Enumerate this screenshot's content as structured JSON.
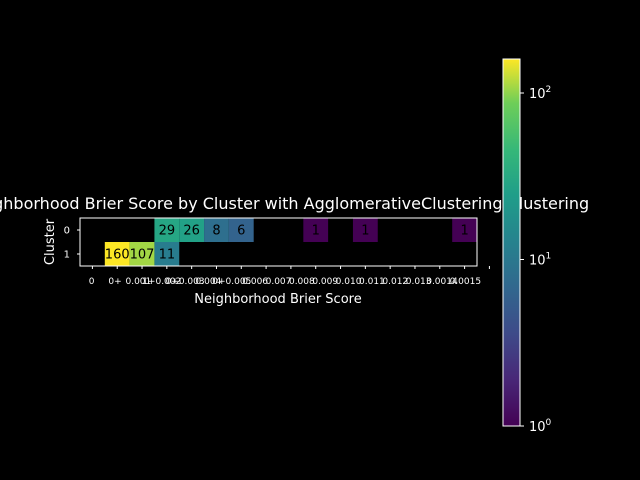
{
  "chart_data": {
    "type": "heatmap",
    "title": "Neighborhood Brier Score by Cluster with AgglomerativeClustering Clustering",
    "xlabel": "Neighborhood Brier Score",
    "ylabel": "Cluster",
    "x_tick_labels": [
      "0",
      "0+",
      "0.001",
      "1+0.002",
      "0+0.003",
      "0.004",
      "0+0.005",
      "0.006",
      "0.007",
      "0.008",
      "0.009",
      "0.010",
      "0.011",
      "0.012",
      "0.013",
      "0.0014",
      "0.0015"
    ],
    "y_categories": [
      "0",
      "1"
    ],
    "columns": 16,
    "cells": [
      {
        "row": 0,
        "col": 3,
        "value": 29
      },
      {
        "row": 0,
        "col": 4,
        "value": 26
      },
      {
        "row": 0,
        "col": 5,
        "value": 8
      },
      {
        "row": 0,
        "col": 6,
        "value": 6
      },
      {
        "row": 0,
        "col": 9,
        "value": 1
      },
      {
        "row": 0,
        "col": 11,
        "value": 1
      },
      {
        "row": 0,
        "col": 15,
        "value": 1
      },
      {
        "row": 1,
        "col": 1,
        "value": 160
      },
      {
        "row": 1,
        "col": 2,
        "value": 107
      },
      {
        "row": 1,
        "col": 3,
        "value": 11
      }
    ],
    "colorbar": {
      "scale": "log",
      "min": 1,
      "max": 160,
      "ticks": [
        {
          "base": "10",
          "exp": "0",
          "value": 1
        },
        {
          "base": "10",
          "exp": "1",
          "value": 10
        },
        {
          "base": "10",
          "exp": "2",
          "value": 100
        }
      ],
      "colormap": "viridis"
    },
    "colors": {
      "background": "#000000",
      "text": "#ffffff"
    }
  }
}
